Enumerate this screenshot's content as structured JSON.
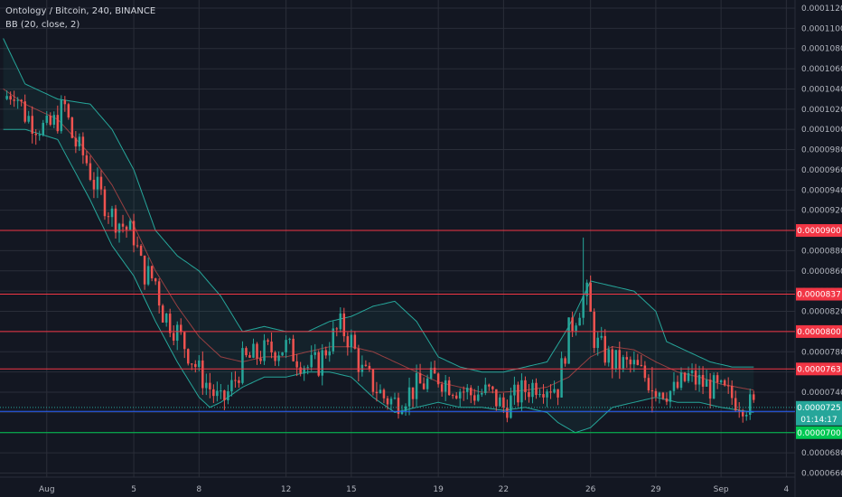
{
  "legend": {
    "title": "Ontology / Bitcoin, 240, BINANCE",
    "indicator": "BB (20, close, 2)"
  },
  "colors": {
    "background": "#131722",
    "grid": "#2a2e39",
    "up": "#26a69a",
    "down": "#ef5350",
    "bb_band": "#26a69a",
    "bb_basis": "#ef5350",
    "hline_red": "#f23645",
    "hline_blue": "#2962ff",
    "hline_green": "#00c853",
    "text": "#b2b5be"
  },
  "chart_data": {
    "type": "candlestick",
    "title": "Ontology / Bitcoin, 240, BINANCE",
    "indicator": "BB (20, close, 2)",
    "ylim": [
      6.56e-05,
      0.0001128
    ],
    "y_ticks": [
      "0.0000660",
      "0.0000680",
      "0.0000700",
      "0.0000720",
      "0.0000740",
      "0.0000760",
      "0.0000780",
      "0.0000800",
      "0.0000820",
      "0.0000840",
      "0.0000860",
      "0.0000880",
      "0.0000900",
      "0.0000920",
      "0.0000940",
      "0.0000960",
      "0.0000980",
      "0.0001000",
      "0.0001020",
      "0.0001040",
      "0.0001060",
      "0.0001080",
      "0.0001100",
      "0.0001120"
    ],
    "x_ticks": [
      {
        "label": "Aug",
        "day": 1
      },
      {
        "label": "5",
        "day": 5
      },
      {
        "label": "8",
        "day": 8
      },
      {
        "label": "12",
        "day": 12
      },
      {
        "label": "15",
        "day": 15
      },
      {
        "label": "19",
        "day": 19
      },
      {
        "label": "22",
        "day": 22
      },
      {
        "label": "26",
        "day": 26
      },
      {
        "label": "29",
        "day": 29
      },
      {
        "label": "Sep",
        "day": 32
      },
      {
        "label": "4",
        "day": 35
      }
    ],
    "x_range_days": [
      -1.15,
      35.4
    ],
    "horizontal_levels": [
      {
        "value": 9e-05,
        "label": "0.0000900",
        "color": "red"
      },
      {
        "value": 8.37e-05,
        "label": "0.0000837",
        "color": "red"
      },
      {
        "value": 8e-05,
        "label": "0.0000800",
        "color": "red"
      },
      {
        "value": 7.63e-05,
        "label": "0.0000763",
        "color": "red"
      },
      {
        "value": 7.21e-05,
        "label": "0.0000721",
        "color": "blue"
      },
      {
        "value": 7e-05,
        "label": "0.0000700",
        "color": "green"
      }
    ],
    "last_price": {
      "value": 7.25e-05,
      "label": "0.0000725",
      "countdown": "01:14:17"
    },
    "close_path": [
      [
        -1.0,
        0.000103
      ],
      [
        -0.5,
        0.000104
      ],
      [
        0.0,
        0.0001015
      ],
      [
        0.5,
        0.0001005
      ],
      [
        1.0,
        0.0001
      ],
      [
        1.5,
        0.000101
      ],
      [
        1.8,
        0.0001025
      ],
      [
        2.2,
        9.9e-05
      ],
      [
        2.8,
        9.7e-05
      ],
      [
        3.2,
        9.45e-05
      ],
      [
        4.0,
        9.15e-05
      ],
      [
        5.0,
        8.95e-05
      ],
      [
        5.4,
        8.6e-05
      ],
      [
        6.0,
        8.5e-05
      ],
      [
        6.3,
        8.2e-05
      ],
      [
        7.0,
        8e-05
      ],
      [
        8.0,
        7.6e-05
      ],
      [
        9.0,
        7.28e-05
      ],
      [
        9.5,
        7.45e-05
      ],
      [
        10.0,
        7.7e-05
      ],
      [
        11.0,
        7.8e-05
      ],
      [
        12.0,
        7.85e-05
      ],
      [
        13.0,
        7.65e-05
      ],
      [
        13.5,
        7.68e-05
      ],
      [
        14.0,
        7.9e-05
      ],
      [
        14.5,
        8.05e-05
      ],
      [
        15.0,
        7.9e-05
      ],
      [
        15.5,
        7.6e-05
      ],
      [
        16.5,
        7.35e-05
      ],
      [
        17.0,
        7.3e-05
      ],
      [
        18.0,
        7.45e-05
      ],
      [
        19.0,
        7.55e-05
      ],
      [
        19.8,
        7.45e-05
      ],
      [
        20.5,
        7.38e-05
      ],
      [
        21.3,
        7.4e-05
      ],
      [
        22.0,
        7.25e-05
      ],
      [
        22.8,
        7.4e-05
      ],
      [
        23.6,
        7.5e-05
      ],
      [
        24.5,
        7.45e-05
      ],
      [
        25.0,
        8e-05
      ],
      [
        25.8,
        8.4e-05
      ],
      [
        26.2,
        7.9e-05
      ],
      [
        27.0,
        7.7e-05
      ],
      [
        28.0,
        7.65e-05
      ],
      [
        29.0,
        7.45e-05
      ],
      [
        29.8,
        7.4e-05
      ],
      [
        30.5,
        7.55e-05
      ],
      [
        31.5,
        7.45e-05
      ],
      [
        32.5,
        7.35e-05
      ],
      [
        33.5,
        7.25e-05
      ]
    ],
    "bb_upper_path": [
      [
        -1.0,
        0.000109
      ],
      [
        0.0,
        0.0001045
      ],
      [
        1.5,
        0.000103
      ],
      [
        3.0,
        0.0001025
      ],
      [
        4.0,
        0.0001
      ],
      [
        5.0,
        9.6e-05
      ],
      [
        6.0,
        9e-05
      ],
      [
        7.0,
        8.75e-05
      ],
      [
        8.0,
        8.6e-05
      ],
      [
        9.0,
        8.35e-05
      ],
      [
        10.0,
        8e-05
      ],
      [
        11.0,
        8.05e-05
      ],
      [
        12.0,
        8e-05
      ],
      [
        13.0,
        8e-05
      ],
      [
        14.0,
        8.1e-05
      ],
      [
        15.0,
        8.15e-05
      ],
      [
        16.0,
        8.25e-05
      ],
      [
        17.0,
        8.3e-05
      ],
      [
        18.0,
        8.1e-05
      ],
      [
        19.0,
        7.75e-05
      ],
      [
        20.0,
        7.65e-05
      ],
      [
        21.0,
        7.6e-05
      ],
      [
        22.0,
        7.6e-05
      ],
      [
        23.0,
        7.65e-05
      ],
      [
        24.0,
        7.7e-05
      ],
      [
        25.0,
        8.05e-05
      ],
      [
        26.0,
        8.5e-05
      ],
      [
        27.0,
        8.45e-05
      ],
      [
        28.0,
        8.4e-05
      ],
      [
        29.0,
        8.2e-05
      ],
      [
        29.5,
        7.9e-05
      ],
      [
        30.5,
        7.8e-05
      ],
      [
        31.5,
        7.7e-05
      ],
      [
        32.5,
        7.65e-05
      ],
      [
        33.5,
        7.65e-05
      ]
    ],
    "bb_lower_path": [
      [
        -1.0,
        0.0001
      ],
      [
        0.0,
        0.0001
      ],
      [
        1.5,
        9.9e-05
      ],
      [
        3.0,
        9.3e-05
      ],
      [
        4.0,
        8.85e-05
      ],
      [
        5.0,
        8.55e-05
      ],
      [
        6.0,
        8.1e-05
      ],
      [
        7.0,
        7.7e-05
      ],
      [
        8.0,
        7.35e-05
      ],
      [
        8.5,
        7.25e-05
      ],
      [
        9.0,
        7.3e-05
      ],
      [
        10.0,
        7.45e-05
      ],
      [
        11.0,
        7.55e-05
      ],
      [
        12.0,
        7.55e-05
      ],
      [
        13.0,
        7.6e-05
      ],
      [
        14.0,
        7.6e-05
      ],
      [
        15.0,
        7.55e-05
      ],
      [
        16.0,
        7.35e-05
      ],
      [
        17.0,
        7.2e-05
      ],
      [
        18.0,
        7.25e-05
      ],
      [
        19.0,
        7.3e-05
      ],
      [
        20.0,
        7.25e-05
      ],
      [
        21.0,
        7.25e-05
      ],
      [
        22.0,
        7.22e-05
      ],
      [
        23.0,
        7.25e-05
      ],
      [
        24.0,
        7.2e-05
      ],
      [
        24.5,
        7.1e-05
      ],
      [
        25.3,
        7e-05
      ],
      [
        26.0,
        7.05e-05
      ],
      [
        27.0,
        7.25e-05
      ],
      [
        28.0,
        7.3e-05
      ],
      [
        29.0,
        7.35e-05
      ],
      [
        30.0,
        7.3e-05
      ],
      [
        31.0,
        7.3e-05
      ],
      [
        32.0,
        7.25e-05
      ],
      [
        33.5,
        7.2e-05
      ]
    ],
    "bb_basis_path": [
      [
        -1.0,
        0.000104
      ],
      [
        0.0,
        0.0001025
      ],
      [
        1.5,
        0.000101
      ],
      [
        3.0,
        9.75e-05
      ],
      [
        4.0,
        9.45e-05
      ],
      [
        5.0,
        9.05e-05
      ],
      [
        6.0,
        8.6e-05
      ],
      [
        7.0,
        8.25e-05
      ],
      [
        8.0,
        7.95e-05
      ],
      [
        9.0,
        7.75e-05
      ],
      [
        10.0,
        7.7e-05
      ],
      [
        11.0,
        7.75e-05
      ],
      [
        12.0,
        7.75e-05
      ],
      [
        13.0,
        7.8e-05
      ],
      [
        14.0,
        7.85e-05
      ],
      [
        15.0,
        7.85e-05
      ],
      [
        16.0,
        7.8e-05
      ],
      [
        17.0,
        7.7e-05
      ],
      [
        18.0,
        7.6e-05
      ],
      [
        19.0,
        7.5e-05
      ],
      [
        20.0,
        7.45e-05
      ],
      [
        21.0,
        7.4e-05
      ],
      [
        22.0,
        7.4e-05
      ],
      [
        23.0,
        7.42e-05
      ],
      [
        24.0,
        7.45e-05
      ],
      [
        25.0,
        7.55e-05
      ],
      [
        26.0,
        7.75e-05
      ],
      [
        27.0,
        7.85e-05
      ],
      [
        28.0,
        7.82e-05
      ],
      [
        29.0,
        7.7e-05
      ],
      [
        30.0,
        7.6e-05
      ],
      [
        31.0,
        7.55e-05
      ],
      [
        32.0,
        7.48e-05
      ],
      [
        33.5,
        7.42e-05
      ]
    ],
    "spikes": [
      {
        "day": 25.75,
        "high": 8.93e-05
      },
      {
        "day": 28.8,
        "high": 7.65e-05,
        "low": 7.2e-05
      }
    ]
  }
}
